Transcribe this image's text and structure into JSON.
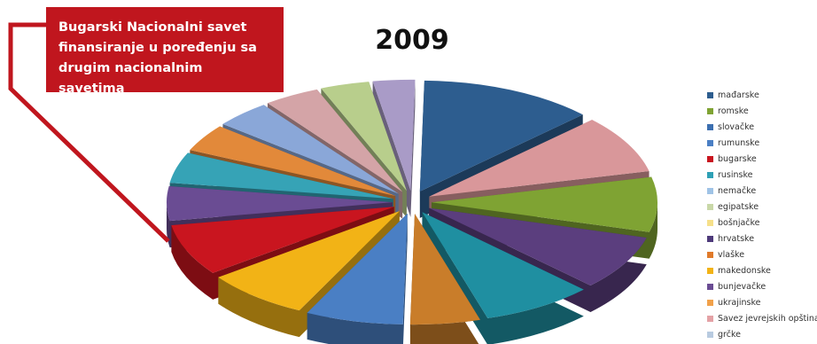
{
  "callout": {
    "text": "Bugarski Nacionalni savet\nfinansiranje u poređenju sa\ndrugim nacionalnim savetima",
    "color": "#c0161e"
  },
  "chart_data": {
    "type": "pie",
    "title": "2009",
    "legend_position": "right",
    "highlight": "bugarske",
    "slices": [
      {
        "label": "mađarske",
        "value": 12.5,
        "color": "#2d5d8f"
      },
      {
        "label": "romske",
        "value": 8.5,
        "color": "#d9979a"
      },
      {
        "label": "slovačke",
        "value": 8.0,
        "color": "#7fa333"
      },
      {
        "label": "rumunske",
        "value": 8.0,
        "color": "#5b3e7e"
      },
      {
        "label": "bugarske",
        "value": 8.0,
        "color": "#1f8fa1"
      },
      {
        "label": "rusinske",
        "value": 5.0,
        "color": "#c97d2a"
      },
      {
        "label": "nemačke",
        "value": 7.0,
        "color": "#4a7fc4"
      },
      {
        "label": "egipatske",
        "value": 7.5,
        "color": "#f2b316"
      },
      {
        "label": "bošnjačke",
        "value": 7.5,
        "color": "#c9151f"
      },
      {
        "label": "hrvatske",
        "value": 5.0,
        "color": "#6a4c93"
      },
      {
        "label": "vlaške",
        "value": 4.5,
        "color": "#36a3b6"
      },
      {
        "label": "makedonske",
        "value": 4.0,
        "color": "#e2893a"
      },
      {
        "label": "bunjevačke",
        "value": 4.0,
        "color": "#8aa7d8"
      },
      {
        "label": "ukrajinske",
        "value": 4.0,
        "color": "#d4a4a7"
      },
      {
        "label": "Savez jevrejskih opština",
        "value": 3.5,
        "color": "#b8ce8c"
      },
      {
        "label": "grčke",
        "value": 3.0,
        "color": "#a99bc7"
      }
    ],
    "legend": [
      {
        "label": "mađarske",
        "color": "#2d5d8f"
      },
      {
        "label": "romske",
        "color": "#7fa333"
      },
      {
        "label": "slovačke",
        "color": "#3c6fb0"
      },
      {
        "label": "rumunske",
        "color": "#4a7fc4"
      },
      {
        "label": "bugarske",
        "color": "#c9151f"
      },
      {
        "label": "rusinske",
        "color": "#2ea0b5"
      },
      {
        "label": "nemačke",
        "color": "#9fc3e6"
      },
      {
        "label": "egipatske",
        "color": "#c9d8a8"
      },
      {
        "label": "bošnjačke",
        "color": "#f6e08a"
      },
      {
        "label": "hrvatske",
        "color": "#4e3a7a"
      },
      {
        "label": "vlaške",
        "color": "#e07a2a"
      },
      {
        "label": "makedonske",
        "color": "#f2b316"
      },
      {
        "label": "bunjevačke",
        "color": "#6a4c93"
      },
      {
        "label": "ukrajinske",
        "color": "#f1a14a"
      },
      {
        "label": "Savez jevrejskih opština",
        "color": "#e4a2a6"
      },
      {
        "label": "grčke",
        "color": "#b8cbe0"
      }
    ]
  }
}
